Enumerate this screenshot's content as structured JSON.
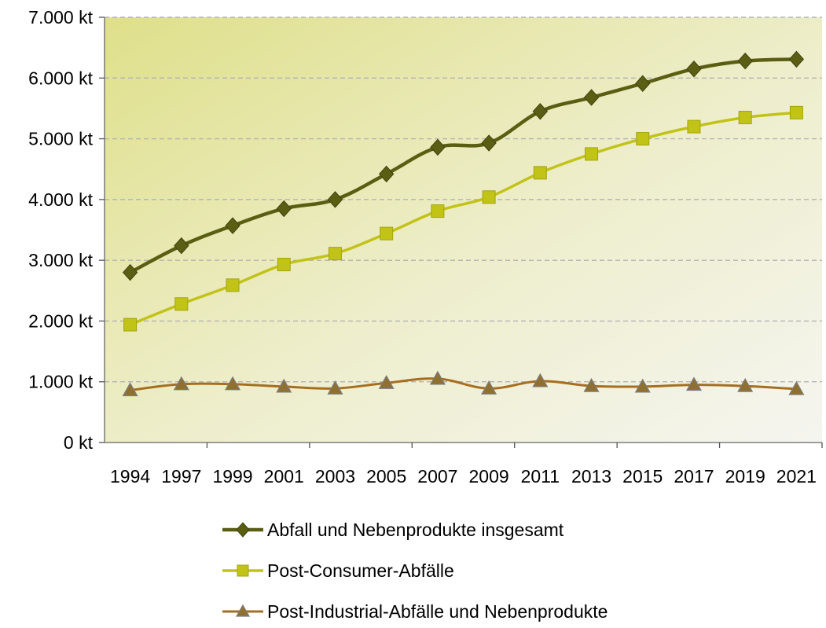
{
  "chart_data": {
    "type": "line",
    "categories": [
      "1994",
      "1997",
      "1999",
      "2001",
      "2003",
      "2005",
      "2007",
      "2009",
      "2011",
      "2013",
      "2015",
      "2017",
      "2019",
      "2021"
    ],
    "y_ticks": [
      "0 kt",
      "1.000 kt",
      "2.000 kt",
      "3.000 kt",
      "4.000 kt",
      "5.000 kt",
      "6.000 kt",
      "7.000 kt"
    ],
    "ylim": [
      0,
      7000
    ],
    "grid": true,
    "legend_position": "bottom",
    "series": [
      {
        "name": "Abfall und Nebenprodukte insgesamt",
        "color": "#5a5e12",
        "marker": "diamond",
        "values": [
          2800,
          3240,
          3570,
          3850,
          4000,
          4420,
          4860,
          4930,
          5450,
          5680,
          5910,
          6150,
          6280,
          6310
        ]
      },
      {
        "name": "Post-Consumer-Abfälle",
        "color": "#c2c317",
        "marker": "square",
        "values": [
          1940,
          2280,
          2590,
          2930,
          3110,
          3440,
          3810,
          4040,
          4440,
          4750,
          5000,
          5200,
          5350,
          5430
        ]
      },
      {
        "name": "Post-Industrial-Abfälle und Nebenprodukte",
        "color": "#a66f1f",
        "marker": "triangle",
        "values": [
          860,
          960,
          960,
          920,
          890,
          980,
          1050,
          890,
          1010,
          930,
          920,
          950,
          930,
          880
        ]
      }
    ]
  }
}
